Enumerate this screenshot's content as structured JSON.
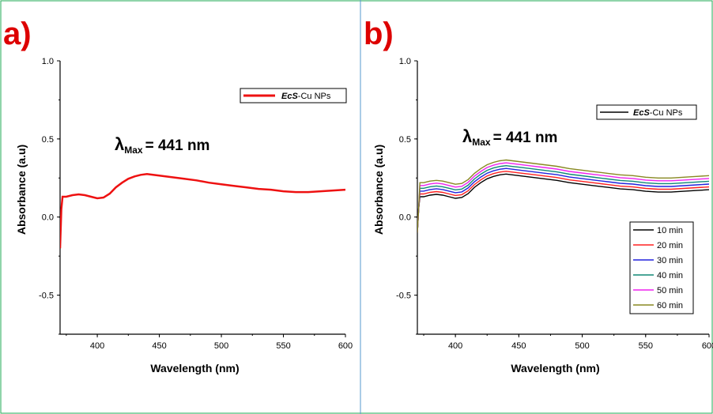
{
  "panels": [
    {
      "label": "a)",
      "color": "#dd0000"
    },
    {
      "label": "b)",
      "color": "#dd0000"
    }
  ],
  "chart_data": [
    {
      "type": "line",
      "panel": "a)",
      "title": "",
      "xlabel": "Wavelength (nm)",
      "ylabel": "Absorbance (a.u)",
      "xlim": [
        370,
        600
      ],
      "ylim": [
        -0.75,
        1.0
      ],
      "xticks": [
        400,
        450,
        500,
        550,
        600
      ],
      "yticks": [
        1.0,
        0.5,
        0.0,
        -0.5
      ],
      "ytick_labels": [
        "1.0",
        "0.5",
        "0.0",
        "-0.5"
      ],
      "annotation": {
        "symbol": "λ",
        "subscript": "Max",
        "text": "= 441 nm"
      },
      "legend": {
        "position": "top-right"
      },
      "series": [
        {
          "name": "EcS-Cu NPs",
          "name_italic": "EcS",
          "name_plain": "-Cu NPs",
          "color": "#ee1111",
          "x": [
            370,
            371,
            372,
            375,
            380,
            385,
            390,
            395,
            400,
            405,
            410,
            415,
            420,
            425,
            430,
            435,
            440,
            445,
            450,
            460,
            470,
            480,
            490,
            500,
            510,
            520,
            530,
            540,
            550,
            560,
            570,
            580,
            590,
            600
          ],
          "y": [
            -0.2,
            0.05,
            0.13,
            0.13,
            0.14,
            0.145,
            0.14,
            0.13,
            0.12,
            0.125,
            0.15,
            0.19,
            0.22,
            0.245,
            0.26,
            0.27,
            0.275,
            0.27,
            0.265,
            0.255,
            0.245,
            0.235,
            0.22,
            0.21,
            0.2,
            0.19,
            0.18,
            0.175,
            0.165,
            0.16,
            0.16,
            0.165,
            0.17,
            0.175
          ]
        }
      ]
    },
    {
      "type": "line",
      "panel": "b)",
      "title": "",
      "xlabel": "Wavelength (nm)",
      "ylabel": "Absorbance (a.u)",
      "xlim": [
        370,
        600
      ],
      "ylim": [
        -0.75,
        1.0
      ],
      "xticks": [
        400,
        450,
        500,
        550,
        600
      ],
      "yticks": [
        1.0,
        0.5,
        0.0,
        -0.5
      ],
      "ytick_labels": [
        "1.0",
        "0.5",
        "0.0",
        "-0.5"
      ],
      "annotation": {
        "symbol": "λ",
        "subscript": "Max",
        "text": "= 441 nm"
      },
      "legend_title": {
        "name": "EcS-Cu NPs",
        "name_italic": "EcS",
        "name_plain": "-Cu NPs",
        "color": "#000000",
        "position": "top-right"
      },
      "legend": {
        "position": "bottom-right"
      },
      "series": [
        {
          "name": "10 min",
          "color": "#000000",
          "offset": 0.0
        },
        {
          "name": "20 min",
          "color": "#ff2020",
          "offset": 0.018
        },
        {
          "name": "30 min",
          "color": "#2222dd",
          "offset": 0.036
        },
        {
          "name": "40 min",
          "color": "#118877",
          "offset": 0.054
        },
        {
          "name": "50 min",
          "color": "#ee22ee",
          "offset": 0.072
        },
        {
          "name": "60 min",
          "color": "#888822",
          "offset": 0.09
        }
      ],
      "base_x": [
        370,
        371,
        372,
        375,
        380,
        385,
        390,
        395,
        400,
        405,
        410,
        415,
        420,
        425,
        430,
        435,
        440,
        445,
        450,
        460,
        470,
        480,
        490,
        500,
        510,
        520,
        530,
        540,
        550,
        560,
        570,
        580,
        590,
        600
      ],
      "base_y": [
        -0.1,
        0.05,
        0.13,
        0.13,
        0.14,
        0.145,
        0.14,
        0.13,
        0.12,
        0.125,
        0.15,
        0.19,
        0.22,
        0.245,
        0.26,
        0.27,
        0.275,
        0.27,
        0.265,
        0.255,
        0.245,
        0.235,
        0.22,
        0.21,
        0.2,
        0.19,
        0.18,
        0.175,
        0.165,
        0.16,
        0.16,
        0.165,
        0.17,
        0.175
      ]
    }
  ]
}
